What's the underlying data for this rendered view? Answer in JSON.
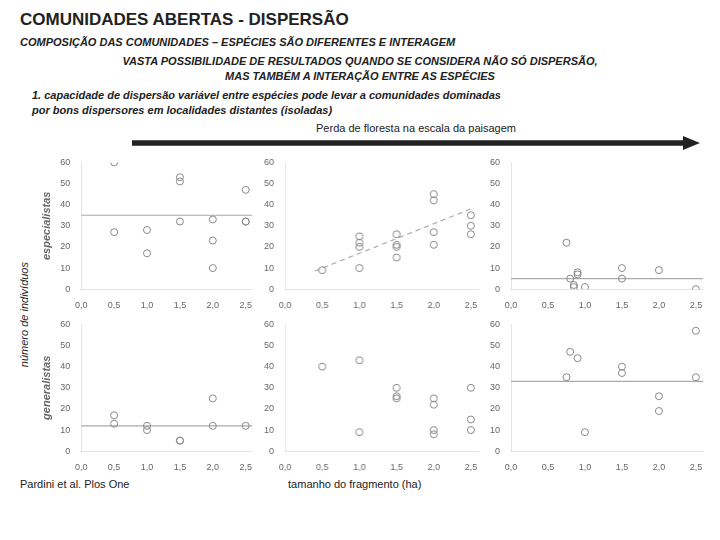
{
  "title": "COMUNIDADES ABERTAS - DISPERSÃO",
  "subtitle": "COMPOSIÇÃO DAS COMUNIDADES – ESPÉCIES SÃO DIFERENTES E INTERAGEM",
  "headline": [
    "VASTA POSSIBILIDADE DE RESULTADOS QUANDO SE CONSIDERA NÃO SÓ DISPERSÃO,",
    "MAS TAMBÉM A INTERAÇÃO ENTRE AS ESPÉCIES"
  ],
  "paragraph": [
    "1. capacidade de dispersão  variável entre espécies pode levar a comunidades dominadas",
    "por bons dispersores em localidades distantes (isoladas)"
  ],
  "arrow_label": "Perda de floresta na escala da paisagem",
  "ylabel": "número de indivíduos",
  "xlabel": "tamanho do fragmento (ha)",
  "source": "Pardini et al. Plos One",
  "chart_data": [
    {
      "type": "scatter",
      "ylabel": "especialistas",
      "series": [
        {
          "type": "scatter",
          "color": "#888888",
          "marker": "circle-open",
          "x": [
            0.5,
            0.5,
            1.0,
            1.0,
            1.5,
            1.5,
            1.5,
            2.0,
            2.0,
            2.0,
            2.5,
            2.5,
            2.5
          ],
          "values": [
            60,
            27,
            28,
            17,
            53,
            51,
            32,
            33,
            23,
            10,
            47,
            32,
            32
          ]
        },
        {
          "type": "hline",
          "color": "#aaaaaa",
          "line_style": "solid",
          "values": [
            35
          ]
        }
      ],
      "xlim": [
        0,
        2.6
      ],
      "xticks": [
        {
          "value": 0.0,
          "label": "0,0"
        },
        {
          "value": 0.5,
          "label": "0,5"
        },
        {
          "value": 1.0,
          "label": "1,0"
        },
        {
          "value": 1.5,
          "label": "1,5"
        },
        {
          "value": 2.0,
          "label": "2,0"
        },
        {
          "value": 2.5,
          "label": "2,5"
        }
      ],
      "ylim": [
        0,
        60
      ],
      "yticks": [
        0,
        10,
        20,
        30,
        40,
        50,
        60
      ],
      "grid": false
    },
    {
      "type": "scatter",
      "series": [
        {
          "type": "scatter",
          "color": "#888888",
          "marker": "circle-open",
          "x": [
            0.5,
            1.0,
            1.0,
            1.0,
            1.0,
            1.5,
            1.5,
            1.5,
            1.5,
            2.0,
            2.0,
            2.0,
            2.0,
            2.5,
            2.5,
            2.5
          ],
          "values": [
            9,
            10,
            20,
            22,
            25,
            21,
            20,
            15,
            26,
            27,
            21,
            45,
            42,
            30,
            35,
            26
          ]
        },
        {
          "type": "line",
          "color": "#aaaaaa",
          "line_style": "dashed",
          "x": [
            0.4,
            2.5
          ],
          "values": [
            8.6,
            38
          ]
        }
      ],
      "xlim": [
        0,
        2.6
      ],
      "xticks": [
        {
          "value": 0.0,
          "label": "0,0"
        },
        {
          "value": 0.5,
          "label": "0,5"
        },
        {
          "value": 1.0,
          "label": "1,0"
        },
        {
          "value": 1.5,
          "label": "1,5"
        },
        {
          "value": 2.0,
          "label": "2,0"
        },
        {
          "value": 2.5,
          "label": "2,5"
        }
      ],
      "ylim": [
        0,
        60
      ],
      "yticks": [
        0,
        10,
        20,
        30,
        40,
        50,
        60
      ],
      "grid": false
    },
    {
      "type": "scatter",
      "series": [
        {
          "type": "scatter",
          "color": "#888888",
          "marker": "circle-open",
          "x": [
            0.75,
            0.8,
            0.85,
            0.85,
            0.9,
            0.9,
            1.0,
            1.5,
            1.5,
            2.0,
            2.5
          ],
          "values": [
            22,
            5,
            2,
            1,
            7,
            8,
            1,
            10,
            5,
            9,
            0
          ]
        },
        {
          "type": "hline",
          "color": "#aaaaaa",
          "line_style": "solid",
          "values": [
            5
          ]
        }
      ],
      "xlim": [
        0,
        2.6
      ],
      "xticks": [
        {
          "value": 0.0,
          "label": "0,0"
        },
        {
          "value": 0.5,
          "label": "0,5"
        },
        {
          "value": 1.0,
          "label": "1,0"
        },
        {
          "value": 1.5,
          "label": "1,5"
        },
        {
          "value": 2.0,
          "label": "2,0"
        },
        {
          "value": 2.5,
          "label": "2,5"
        }
      ],
      "ylim": [
        0,
        60
      ],
      "yticks": [
        0,
        10,
        20,
        30,
        40,
        50,
        60
      ],
      "grid": false
    },
    {
      "type": "scatter",
      "ylabel": "generalistas",
      "series": [
        {
          "type": "scatter",
          "color": "#888888",
          "marker": "circle-open",
          "x": [
            0.5,
            0.5,
            1.0,
            1.0,
            1.5,
            1.5,
            2.0,
            2.0,
            2.5
          ],
          "values": [
            13,
            17,
            12,
            10,
            5,
            5,
            12,
            25,
            12
          ]
        },
        {
          "type": "hline",
          "color": "#aaaaaa",
          "line_style": "solid",
          "values": [
            12
          ]
        }
      ],
      "xlim": [
        0,
        2.6
      ],
      "xticks": [
        {
          "value": 0.0,
          "label": "0,0"
        },
        {
          "value": 0.5,
          "label": "0,5"
        },
        {
          "value": 1.0,
          "label": "1,0"
        },
        {
          "value": 1.5,
          "label": "1,5"
        },
        {
          "value": 2.0,
          "label": "2,0"
        },
        {
          "value": 2.5,
          "label": "2,5"
        }
      ],
      "ylim": [
        0,
        60
      ],
      "yticks": [
        0,
        10,
        20,
        30,
        40,
        50,
        60
      ],
      "grid": false
    },
    {
      "type": "scatter",
      "series": [
        {
          "type": "scatter",
          "color": "#888888",
          "marker": "circle-open",
          "x": [
            0.5,
            1.0,
            1.0,
            1.5,
            1.5,
            1.5,
            2.0,
            2.0,
            2.0,
            2.0,
            2.5,
            2.5,
            2.5
          ],
          "values": [
            40,
            9,
            43,
            26,
            25,
            30,
            25,
            22,
            10,
            8,
            30,
            15,
            10
          ]
        }
      ],
      "xlim": [
        0,
        2.6
      ],
      "xticks": [
        {
          "value": 0.0,
          "label": "0,0"
        },
        {
          "value": 0.5,
          "label": "0,5"
        },
        {
          "value": 1.0,
          "label": "1,0"
        },
        {
          "value": 1.5,
          "label": "1,5"
        },
        {
          "value": 2.0,
          "label": "2,0"
        },
        {
          "value": 2.5,
          "label": "2,5"
        }
      ],
      "ylim": [
        0,
        60
      ],
      "yticks": [
        0,
        10,
        20,
        30,
        40,
        50,
        60
      ],
      "grid": false
    },
    {
      "type": "scatter",
      "series": [
        {
          "type": "scatter",
          "color": "#888888",
          "marker": "circle-open",
          "x": [
            0.75,
            0.8,
            0.9,
            1.0,
            1.5,
            1.5,
            2.0,
            2.0,
            2.5,
            2.5
          ],
          "values": [
            35,
            47,
            44,
            9,
            37,
            40,
            19,
            26,
            35,
            57
          ]
        },
        {
          "type": "hline",
          "color": "#aaaaaa",
          "line_style": "solid",
          "values": [
            33
          ]
        }
      ],
      "xlim": [
        0,
        2.6
      ],
      "xticks": [
        {
          "value": 0.0,
          "label": "0,0"
        },
        {
          "value": 0.5,
          "label": "0,5"
        },
        {
          "value": 1.0,
          "label": "1,0"
        },
        {
          "value": 1.5,
          "label": "1,5"
        },
        {
          "value": 2.0,
          "label": "2,0"
        },
        {
          "value": 2.5,
          "label": "2,5"
        }
      ],
      "ylim": [
        0,
        60
      ],
      "yticks": [
        0,
        10,
        20,
        30,
        40,
        50,
        60
      ],
      "grid": false
    }
  ]
}
